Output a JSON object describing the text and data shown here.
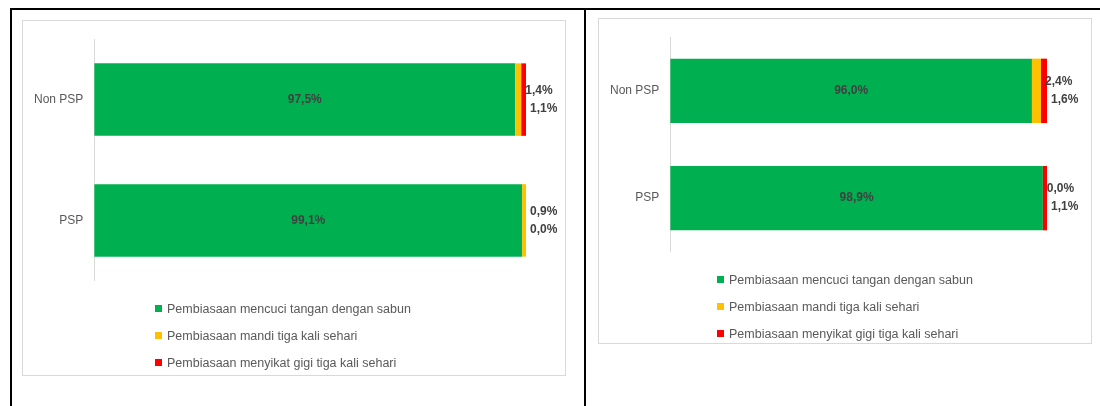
{
  "chart_data": [
    {
      "type": "bar",
      "orientation": "horizontal",
      "stacked": true,
      "legend": "bottom",
      "tick_labels": "y",
      "categories": [
        "Non PSP",
        "PSP"
      ],
      "series": [
        {
          "name": "Pembiasaan mencuci tangan dengan sabun",
          "color": "#00b050",
          "values": [
            97.5,
            99.1
          ],
          "value_labels": [
            "97,5%",
            "99,1%"
          ]
        },
        {
          "name": "Pembiasaan mandi tiga kali sehari",
          "color": "#ffc000",
          "values": [
            1.4,
            0.9
          ],
          "value_labels": [
            "1,4%",
            "0,9%"
          ]
        },
        {
          "name": "Pembiasaan menyikat gigi tiga kali sehari",
          "color": "#ff0000",
          "values": [
            1.1,
            0.0
          ],
          "value_labels": [
            "1,1%",
            "0,0%"
          ]
        }
      ]
    },
    {
      "type": "bar",
      "orientation": "horizontal",
      "stacked": true,
      "legend": "bottom",
      "tick_labels": "y",
      "categories": [
        "Non PSP",
        "PSP"
      ],
      "series": [
        {
          "name": "Pembiasaan mencuci tangan dengan sabun",
          "color": "#00b050",
          "values": [
            96.0,
            98.9
          ],
          "value_labels": [
            "96,0%",
            "98,9%"
          ]
        },
        {
          "name": "Pembiasaan mandi tiga kali sehari",
          "color": "#ffc000",
          "values": [
            2.4,
            0.0
          ],
          "value_labels": [
            "2,4%",
            "0,0%"
          ]
        },
        {
          "name": "Pembiasaan menyikat gigi tiga kali sehari",
          "color": "#ff0000",
          "values": [
            1.6,
            1.1
          ],
          "value_labels": [
            "1,6%",
            "1,1%"
          ]
        }
      ]
    }
  ]
}
